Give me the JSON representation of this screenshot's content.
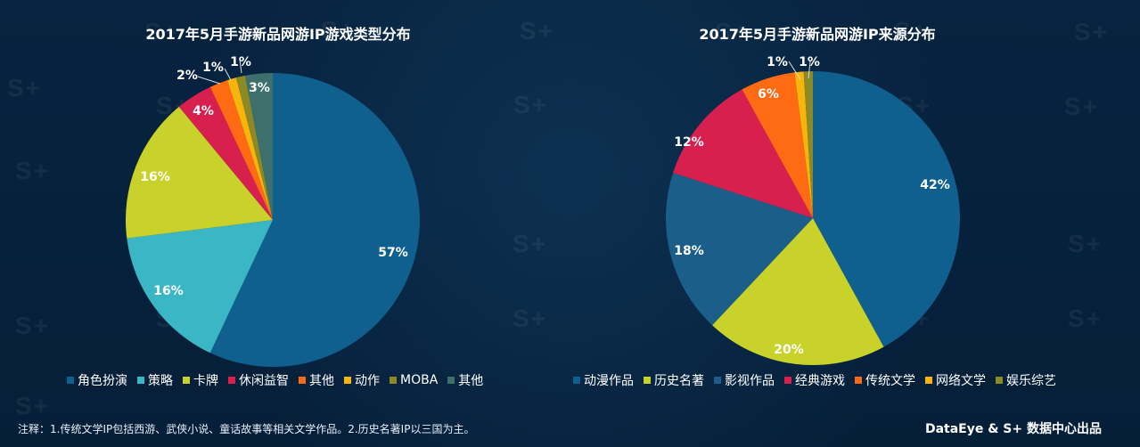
{
  "chart_data": [
    {
      "type": "pie",
      "title": "2017年5月手游新品网游IP游戏类型分布",
      "labels": [
        "角色扮演",
        "策略",
        "卡牌",
        "休闲益智",
        "其他",
        "动作",
        "MOBA",
        "其他"
      ],
      "values": [
        57,
        16,
        16,
        4,
        2,
        1,
        1,
        3
      ],
      "value_labels": [
        "57%",
        "16%",
        "16%",
        "4%",
        "2%",
        "1%",
        "1%",
        "3%"
      ],
      "colors": [
        "#0f5f8f",
        "#3bb6c4",
        "#c8d22b",
        "#d8204f",
        "#ff6a13",
        "#f7b40b",
        "#8b8a26",
        "#3d6f6c"
      ],
      "legend_position": "bottom"
    },
    {
      "type": "pie",
      "title": "2017年5月手游新品网游IP来源分布",
      "labels": [
        "动漫作品",
        "历史名著",
        "影视作品",
        "经典游戏",
        "传统文学",
        "网络文学",
        "娱乐综艺"
      ],
      "values": [
        42,
        20,
        18,
        12,
        6,
        1,
        1
      ],
      "value_labels": [
        "42%",
        "20%",
        "18%",
        "12%",
        "6%",
        "1%",
        "1%"
      ],
      "colors": [
        "#0f5f8f",
        "#c8d22b",
        "#1c5e8a",
        "#d8204f",
        "#ff6a13",
        "#f7b40b",
        "#8b8a26"
      ],
      "legend_position": "bottom"
    }
  ],
  "footer": {
    "note": "注释：1.传统文学IP包括西游、武侠小说、童话故事等相关文学作品。2.历史名著IP以三国为主。",
    "brand": "DataEye & S+ 数据中心出品"
  },
  "watermark": {
    "text": "S+"
  }
}
